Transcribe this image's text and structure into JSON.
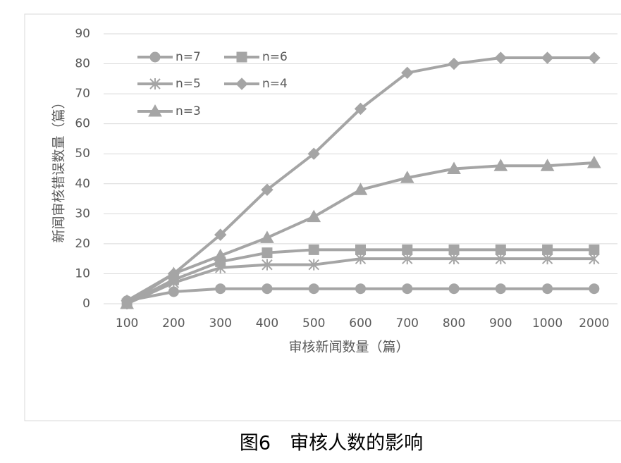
{
  "chart_data": {
    "type": "line",
    "xlabel": "审核新闻数量（篇）",
    "ylabel": "新闻审核错误数量（篇）",
    "categories": [
      "100",
      "200",
      "300",
      "400",
      "500",
      "600",
      "700",
      "800",
      "900",
      "1000",
      "2000"
    ],
    "ylim": [
      0,
      90
    ],
    "yticks": [
      0,
      10,
      20,
      30,
      40,
      50,
      60,
      70,
      80,
      90
    ],
    "grid": true,
    "legend": "upper-left",
    "series": [
      {
        "name": "n=7",
        "color": "#a5a5a5",
        "marker": "circle",
        "values": [
          1,
          4,
          5,
          5,
          5,
          5,
          5,
          5,
          5,
          5,
          5
        ]
      },
      {
        "name": "n=6",
        "color": "#a5a5a5",
        "marker": "square",
        "values": [
          0,
          8,
          14,
          17,
          18,
          18,
          18,
          18,
          18,
          18,
          18
        ]
      },
      {
        "name": "n=5",
        "color": "#a5a5a5",
        "marker": "star",
        "values": [
          0,
          7,
          12,
          13,
          13,
          15,
          15,
          15,
          15,
          15,
          15
        ]
      },
      {
        "name": "n=4",
        "color": "#a5a5a5",
        "marker": "diamond",
        "values": [
          1,
          10,
          23,
          38,
          50,
          65,
          77,
          80,
          82,
          82,
          82
        ]
      },
      {
        "name": "n=3",
        "color": "#a5a5a5",
        "marker": "triangle",
        "values": [
          0,
          10,
          16,
          22,
          29,
          38,
          42,
          45,
          46,
          46,
          47
        ]
      }
    ]
  },
  "caption": "图6　审核人数的影响"
}
